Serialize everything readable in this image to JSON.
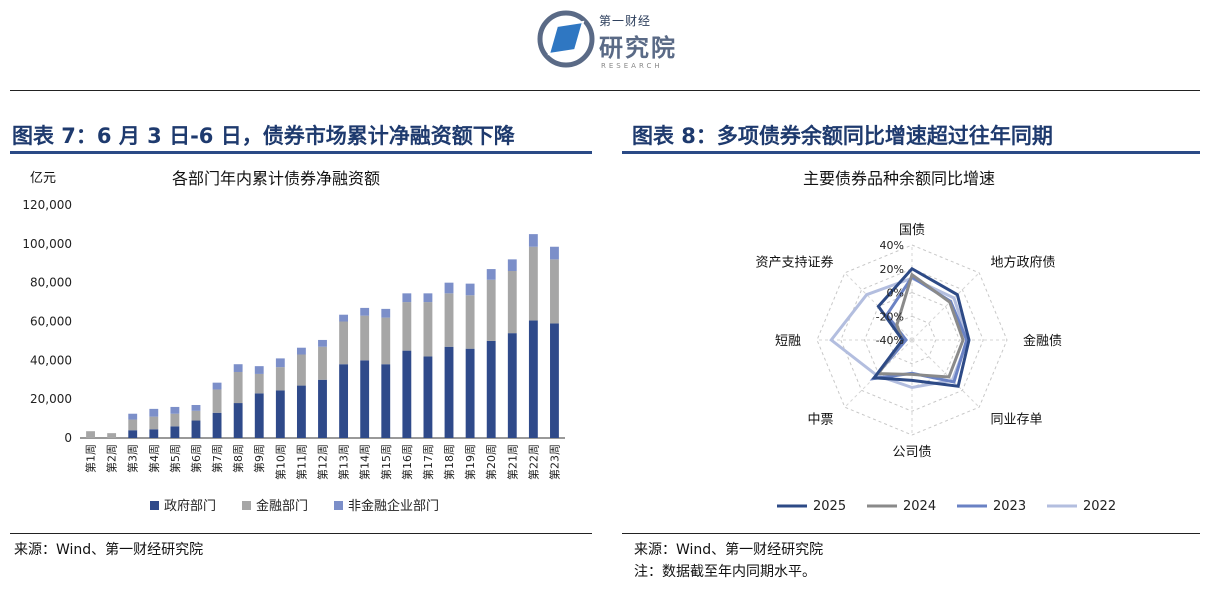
{
  "logo": {
    "brand_small": "第一财经",
    "brand_big": "研究院",
    "brand_en": "RESEARCH"
  },
  "left": {
    "title": "图表 7：6 月 3 日-6 日，债券市场累计净融资额下降",
    "source": "来源：Wind、第一财经研究院"
  },
  "right": {
    "title": "图表 8：多项债券余额同比增速超过往年同期",
    "source": "来源：Wind、第一财经研究院",
    "note": "注：数据截至年内同期水平。"
  },
  "chart_data": [
    {
      "type": "bar",
      "stacked": true,
      "title": "各部门年内累计债券净融资额",
      "ylabel": "亿元",
      "ylim": [
        0,
        120000
      ],
      "yticks": [
        "0",
        "20,000",
        "40,000",
        "60,000",
        "80,000",
        "100,000",
        "120,000"
      ],
      "legend_position": "bottom",
      "categories": [
        "第1周",
        "第2周",
        "第3周",
        "第4周",
        "第5周",
        "第6周",
        "第7周",
        "第8周",
        "第9周",
        "第10周",
        "第11周",
        "第12周",
        "第13周",
        "第14周",
        "第15周",
        "第16周",
        "第17周",
        "第18周",
        "第19周",
        "第20周",
        "第21周",
        "第22周",
        "第23周"
      ],
      "series": [
        {
          "name": "政府部门",
          "color": "#2f4a8a",
          "values": [
            0,
            0,
            4000,
            4500,
            6000,
            9000,
            13000,
            18000,
            23000,
            24500,
            27000,
            30000,
            38000,
            40000,
            38000,
            45000,
            42000,
            47000,
            46000,
            50000,
            54000,
            60500,
            59000
          ]
        },
        {
          "name": "金融部门",
          "color": "#a6a6a6",
          "values": [
            3500,
            2500,
            5500,
            6500,
            6500,
            5000,
            12000,
            16000,
            10000,
            12000,
            16000,
            17000,
            22000,
            23000,
            24000,
            25000,
            28000,
            27500,
            27500,
            31500,
            32000,
            38000,
            33000
          ]
        },
        {
          "name": "非金融企业部门",
          "color": "#7c8fc9",
          "values": [
            0,
            0,
            3000,
            4000,
            3500,
            3000,
            3500,
            4000,
            4000,
            4500,
            3500,
            3500,
            3500,
            4000,
            4500,
            4500,
            4500,
            5500,
            6000,
            5500,
            6000,
            6500,
            6500
          ]
        }
      ]
    },
    {
      "type": "radar",
      "title": "主要债券品种余额同比增速",
      "axes": [
        "国债",
        "地方政府债",
        "金融债",
        "同业存单",
        "公司债",
        "中票",
        "短融",
        "资产支持证券"
      ],
      "rlim": [
        -40,
        40
      ],
      "ticks": [
        "40%",
        "20%",
        "0%",
        "-20%",
        "-40%"
      ],
      "legend_position": "bottom",
      "series": [
        {
          "name": "2025",
          "color": "#2d4a86",
          "values": [
            20,
            14,
            8,
            15,
            -6,
            5,
            -32,
            0
          ]
        },
        {
          "name": "2024",
          "color": "#8a8a8a",
          "values": [
            15,
            5,
            3,
            4,
            -11,
            0,
            -32,
            -22
          ]
        },
        {
          "name": "2023",
          "color": "#6a82c4",
          "values": [
            13,
            6,
            6,
            10,
            -12,
            6,
            -35,
            -10
          ]
        },
        {
          "name": "2022",
          "color": "#b3bedf",
          "values": [
            12,
            10,
            7,
            8,
            0,
            2,
            28,
            14
          ]
        }
      ]
    }
  ]
}
